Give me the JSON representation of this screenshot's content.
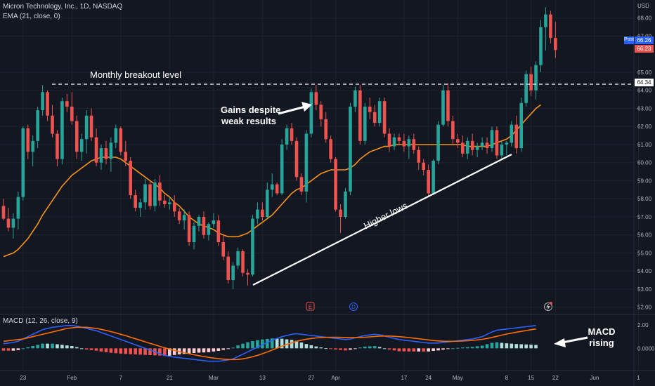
{
  "header": {
    "symbol_line": "Micron Technology, Inc., 1D, NASDAQ",
    "ema_line": "EMA (21, close, 0)",
    "macd_line": "MACD (12, 26, close, 9)"
  },
  "axis": {
    "currency": "USD",
    "price_ticks": [
      "68.00",
      "67.00",
      "65.00",
      "64.00",
      "63.00",
      "62.00",
      "61.00",
      "60.00",
      "59.00",
      "58.00",
      "57.00",
      "56.00",
      "55.00",
      "54.00",
      "53.00",
      "52.00"
    ],
    "macd_ticks": [
      "2.00",
      "0.0000"
    ],
    "date_ticks": [
      "23",
      "Feb",
      "7",
      "21",
      "Mar",
      "13",
      "27",
      "Apr",
      "17",
      "24",
      "May",
      "8",
      "15",
      "22",
      "Jun",
      "1"
    ]
  },
  "price_badges": {
    "post_label": "Post",
    "post_value": "66.26",
    "last_value": "66.23",
    "level_value": "64.34"
  },
  "event_markers": [
    "E",
    "D"
  ],
  "annotations": {
    "breakout": "Monthly breakout level",
    "gains_line1": "Gains despite",
    "gains_line2": "weak results",
    "higher_lows": "Higher lows",
    "macd_line1": "MACD",
    "macd_line2": "rising"
  },
  "colors": {
    "background": "#131722",
    "up": "#26a69a",
    "down": "#ef5350",
    "ema": "#f7931a",
    "macd": "#2962ff",
    "signal": "#ff6d00",
    "annotation": "#ffffff"
  },
  "chart_data": {
    "type": "candlestick",
    "ylim": [
      51.6,
      69.0
    ],
    "breakout_level": 64.34,
    "candles": [
      [
        57.6,
        58.0,
        56.8,
        56.9
      ],
      [
        56.9,
        57.5,
        56.2,
        56.4
      ],
      [
        56.4,
        57.2,
        55.8,
        56.9
      ],
      [
        56.9,
        58.4,
        56.3,
        58.1
      ],
      [
        58.1,
        62.0,
        57.9,
        61.9
      ],
      [
        61.9,
        62.1,
        60.2,
        60.6
      ],
      [
        60.6,
        61.5,
        59.8,
        61.2
      ],
      [
        61.2,
        63.1,
        60.8,
        62.9
      ],
      [
        62.9,
        64.3,
        62.6,
        63.9
      ],
      [
        63.9,
        64.0,
        62.3,
        62.6
      ],
      [
        62.6,
        63.2,
        61.4,
        61.6
      ],
      [
        61.6,
        61.8,
        59.8,
        60.2
      ],
      [
        60.2,
        63.6,
        59.9,
        63.4
      ],
      [
        63.4,
        63.8,
        62.8,
        63.1
      ],
      [
        63.1,
        63.9,
        62.1,
        62.3
      ],
      [
        62.3,
        62.6,
        60.2,
        60.6
      ],
      [
        60.6,
        61.6,
        60.1,
        61.3
      ],
      [
        61.3,
        62.9,
        60.5,
        62.6
      ],
      [
        62.6,
        63.0,
        61.2,
        61.4
      ],
      [
        61.4,
        61.9,
        59.8,
        60.0
      ],
      [
        60.0,
        61.0,
        59.6,
        60.8
      ],
      [
        60.8,
        61.2,
        59.9,
        60.2
      ],
      [
        60.2,
        61.4,
        59.5,
        61.1
      ],
      [
        61.1,
        62.1,
        60.8,
        61.9
      ],
      [
        61.9,
        62.0,
        60.4,
        60.6
      ],
      [
        60.6,
        61.2,
        59.8,
        60.1
      ],
      [
        60.1,
        60.3,
        58.0,
        58.2
      ],
      [
        58.2,
        58.5,
        57.3,
        57.5
      ],
      [
        57.5,
        58.0,
        57.0,
        57.8
      ],
      [
        57.8,
        59.1,
        57.4,
        58.8
      ],
      [
        58.8,
        59.0,
        57.4,
        57.6
      ],
      [
        57.6,
        59.1,
        57.3,
        58.9
      ],
      [
        58.9,
        59.3,
        57.6,
        57.9
      ],
      [
        57.9,
        58.2,
        57.5,
        57.7
      ],
      [
        57.7,
        58.1,
        57.4,
        57.8
      ],
      [
        57.8,
        58.2,
        57.0,
        57.3
      ],
      [
        57.3,
        57.5,
        56.6,
        56.8
      ],
      [
        56.8,
        57.4,
        56.3,
        57.1
      ],
      [
        57.1,
        57.3,
        55.4,
        55.6
      ],
      [
        55.6,
        56.7,
        55.2,
        56.5
      ],
      [
        56.5,
        57.1,
        56.2,
        57.0
      ],
      [
        57.0,
        57.3,
        55.8,
        56.0
      ],
      [
        56.0,
        56.7,
        55.7,
        56.6
      ],
      [
        56.6,
        57.2,
        56.4,
        56.8
      ],
      [
        56.8,
        57.1,
        55.4,
        55.6
      ],
      [
        55.6,
        56.0,
        54.6,
        54.8
      ],
      [
        54.8,
        55.1,
        53.3,
        53.5
      ],
      [
        53.5,
        54.5,
        53.0,
        54.3
      ],
      [
        54.3,
        55.3,
        54.1,
        55.1
      ],
      [
        55.1,
        55.2,
        53.7,
        53.9
      ],
      [
        53.9,
        54.1,
        53.2,
        53.8
      ],
      [
        53.8,
        57.1,
        53.7,
        56.9
      ],
      [
        56.9,
        57.8,
        56.6,
        57.4
      ],
      [
        57.4,
        57.8,
        56.8,
        57.0
      ],
      [
        57.0,
        58.9,
        56.9,
        58.5
      ],
      [
        58.5,
        59.4,
        58.1,
        58.8
      ],
      [
        58.8,
        58.9,
        58.2,
        58.3
      ],
      [
        58.3,
        61.3,
        58.2,
        61.0
      ],
      [
        61.0,
        62.1,
        60.7,
        61.9
      ],
      [
        61.9,
        62.2,
        61.0,
        61.2
      ],
      [
        61.2,
        61.4,
        59.0,
        59.2
      ],
      [
        59.2,
        59.4,
        58.2,
        58.4
      ],
      [
        58.4,
        61.8,
        57.8,
        61.6
      ],
      [
        61.6,
        64.1,
        61.4,
        63.9
      ],
      [
        63.9,
        64.3,
        62.9,
        63.2
      ],
      [
        63.2,
        63.4,
        62.0,
        62.4
      ],
      [
        62.4,
        62.8,
        61.1,
        61.3
      ],
      [
        61.3,
        61.5,
        60.0,
        60.2
      ],
      [
        60.2,
        60.3,
        57.3,
        57.4
      ],
      [
        57.4,
        57.7,
        56.1,
        57.0
      ],
      [
        57.0,
        58.6,
        56.9,
        58.4
      ],
      [
        58.4,
        63.3,
        58.2,
        63.1
      ],
      [
        63.1,
        64.2,
        62.8,
        64.0
      ],
      [
        64.0,
        64.3,
        61.0,
        61.2
      ],
      [
        61.2,
        63.3,
        61.0,
        63.1
      ],
      [
        63.1,
        63.6,
        62.4,
        62.8
      ],
      [
        62.8,
        63.2,
        62.0,
        62.2
      ],
      [
        62.2,
        63.6,
        62.0,
        63.4
      ],
      [
        63.4,
        63.6,
        61.4,
        61.6
      ],
      [
        61.6,
        61.9,
        60.6,
        60.9
      ],
      [
        60.9,
        61.6,
        60.7,
        61.4
      ],
      [
        61.4,
        61.6,
        61.0,
        61.2
      ],
      [
        61.2,
        61.6,
        60.6,
        60.9
      ],
      [
        60.9,
        61.5,
        60.2,
        61.3
      ],
      [
        61.3,
        61.6,
        60.5,
        60.7
      ],
      [
        60.7,
        60.9,
        59.6,
        60.0
      ],
      [
        60.0,
        60.2,
        59.3,
        59.6
      ],
      [
        59.6,
        59.9,
        58.1,
        58.3
      ],
      [
        58.3,
        60.2,
        58.2,
        60.1
      ],
      [
        60.1,
        62.3,
        59.9,
        62.1
      ],
      [
        62.1,
        64.3,
        62.0,
        64.0
      ],
      [
        64.0,
        64.4,
        62.0,
        62.3
      ],
      [
        62.3,
        62.6,
        61.0,
        61.3
      ],
      [
        61.3,
        61.6,
        60.8,
        61.1
      ],
      [
        61.1,
        61.5,
        60.3,
        60.5
      ],
      [
        60.5,
        61.4,
        60.2,
        61.2
      ],
      [
        61.2,
        61.6,
        60.4,
        60.7
      ],
      [
        60.7,
        61.1,
        60.3,
        60.9
      ],
      [
        60.9,
        61.4,
        60.7,
        61.1
      ],
      [
        61.1,
        61.4,
        60.5,
        60.8
      ],
      [
        60.8,
        62.0,
        60.6,
        61.8
      ],
      [
        61.8,
        62.0,
        60.2,
        60.4
      ],
      [
        60.4,
        61.2,
        60.2,
        61.0
      ],
      [
        61.0,
        61.2,
        60.4,
        61.1
      ],
      [
        61.1,
        62.3,
        60.9,
        62.1
      ],
      [
        62.1,
        62.6,
        60.5,
        60.8
      ],
      [
        60.8,
        63.6,
        60.6,
        63.3
      ],
      [
        63.3,
        65.1,
        63.1,
        64.9
      ],
      [
        64.9,
        65.3,
        63.7,
        64.0
      ],
      [
        64.0,
        65.6,
        63.5,
        65.4
      ],
      [
        65.4,
        67.9,
        65.0,
        67.5
      ],
      [
        67.5,
        68.6,
        66.2,
        68.2
      ],
      [
        68.2,
        68.4,
        66.6,
        66.9
      ],
      [
        66.9,
        67.8,
        65.8,
        66.23
      ]
    ],
    "ema21": [
      54.8,
      54.9,
      55.0,
      55.2,
      55.5,
      55.8,
      56.2,
      56.6,
      57.1,
      57.5,
      57.9,
      58.3,
      58.7,
      59.0,
      59.3,
      59.5,
      59.7,
      59.9,
      60.1,
      60.2,
      60.3,
      60.3,
      60.3,
      60.3,
      60.2,
      60.0,
      59.8,
      59.6,
      59.4,
      59.2,
      59.0,
      58.8,
      58.6,
      58.3,
      58.1,
      57.8,
      57.6,
      57.3,
      57.0,
      56.8,
      56.6,
      56.5,
      56.4,
      56.3,
      56.1,
      56.0,
      55.9,
      55.9,
      55.9,
      56.0,
      56.1,
      56.3,
      56.5,
      56.7,
      56.9,
      57.1,
      57.4,
      57.7,
      58.0,
      58.3,
      58.5,
      58.6,
      58.8,
      59.0,
      59.2,
      59.4,
      59.5,
      59.6,
      59.6,
      59.6,
      59.6,
      59.7,
      59.9,
      60.2,
      60.4,
      60.6,
      60.7,
      60.8,
      60.9,
      60.9,
      61.0,
      61.0,
      61.0,
      61.0,
      61.0,
      61.0,
      61.0,
      61.0,
      61.0,
      61.0,
      61.0,
      61.0,
      61.0,
      61.0,
      61.0,
      60.9,
      60.9,
      60.9,
      60.9,
      60.9,
      61.0,
      61.1,
      61.2,
      61.3,
      61.5,
      61.8,
      62.1,
      62.4,
      62.7,
      63.0,
      63.2
    ],
    "macd": [
      0.4,
      0.45,
      0.5,
      0.6,
      0.8,
      1.0,
      1.2,
      1.4,
      1.6,
      1.7,
      1.8,
      1.85,
      1.9,
      1.95,
      1.95,
      1.9,
      1.8,
      1.7,
      1.6,
      1.5,
      1.35,
      1.2,
      1.05,
      0.9,
      0.75,
      0.6,
      0.45,
      0.3,
      0.15,
      0.0,
      -0.15,
      -0.3,
      -0.45,
      -0.6,
      -0.7,
      -0.75,
      -0.8,
      -0.85,
      -0.9,
      -0.95,
      -1.0,
      -1.05,
      -1.1,
      -1.1,
      -1.1,
      -1.05,
      -1.0,
      -0.9,
      -0.7,
      -0.5,
      -0.3,
      -0.1,
      0.1,
      0.3,
      0.5,
      0.7,
      0.85,
      1.0,
      1.1,
      1.2,
      1.25,
      1.2,
      1.15,
      1.1,
      1.05,
      1.0,
      0.95,
      0.9,
      0.85,
      0.8,
      0.75,
      0.8,
      0.9,
      1.0,
      1.1,
      1.15,
      1.2,
      1.15,
      1.05,
      0.95,
      0.85,
      0.75,
      0.7,
      0.65,
      0.6,
      0.55,
      0.5,
      0.45,
      0.45,
      0.45,
      0.5,
      0.55,
      0.6,
      0.65,
      0.7,
      0.75,
      0.8,
      0.9,
      1.0,
      1.2,
      1.4,
      1.55,
      1.6,
      1.65,
      1.7,
      1.75,
      1.8,
      1.85,
      1.9,
      1.95
    ],
    "signal": [
      0.6,
      0.65,
      0.7,
      0.75,
      0.8,
      0.9,
      1.0,
      1.1,
      1.2,
      1.3,
      1.4,
      1.5,
      1.6,
      1.7,
      1.75,
      1.8,
      1.8,
      1.8,
      1.75,
      1.7,
      1.62,
      1.53,
      1.43,
      1.32,
      1.2,
      1.08,
      0.95,
      0.82,
      0.69,
      0.56,
      0.43,
      0.3,
      0.17,
      0.05,
      -0.07,
      -0.18,
      -0.28,
      -0.37,
      -0.46,
      -0.55,
      -0.63,
      -0.7,
      -0.77,
      -0.83,
      -0.88,
      -0.92,
      -0.95,
      -0.96,
      -0.95,
      -0.9,
      -0.82,
      -0.72,
      -0.6,
      -0.46,
      -0.31,
      -0.15,
      0.02,
      0.18,
      0.33,
      0.47,
      0.6,
      0.7,
      0.78,
      0.84,
      0.89,
      0.92,
      0.94,
      0.95,
      0.95,
      0.94,
      0.93,
      0.92,
      0.92,
      0.93,
      0.95,
      0.98,
      1.01,
      1.04,
      1.05,
      1.05,
      1.03,
      1.0,
      0.96,
      0.92,
      0.87,
      0.82,
      0.77,
      0.72,
      0.67,
      0.63,
      0.61,
      0.6,
      0.6,
      0.61,
      0.63,
      0.65,
      0.68,
      0.72,
      0.77,
      0.84,
      0.93,
      1.03,
      1.13,
      1.22,
      1.3,
      1.38,
      1.45,
      1.52,
      1.59,
      1.66
    ]
  }
}
